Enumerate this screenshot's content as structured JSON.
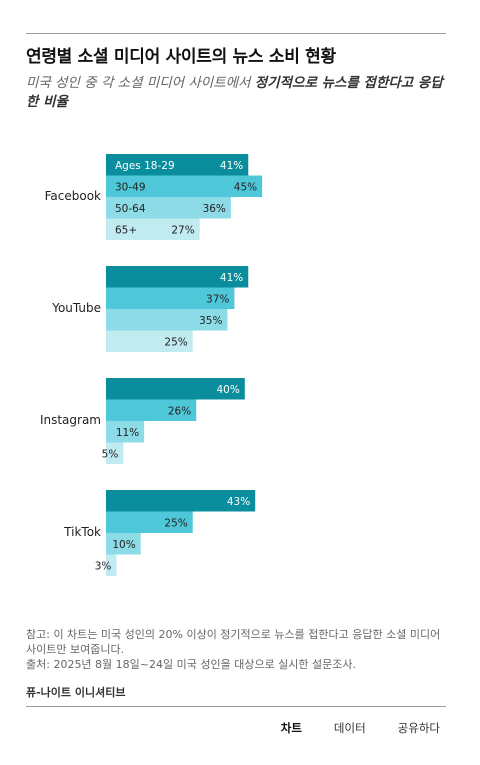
{
  "title": "연령별 소셜 미디어 사이트의 뉴스 소비 현황",
  "subtitle_before": "미국 성인 중 각 소셜 미디어 사이트에서 ",
  "subtitle_emphasis": "정기적으로 뉴스를 접한다고 응답한 비율",
  "colors": {
    "accent": "#0a8e9e",
    "series": [
      "#0a8e9e",
      "#4ec8d8",
      "#8ddbe6",
      "#c0ebf1"
    ]
  },
  "chart_data": {
    "type": "bar",
    "orientation": "horizontal",
    "title": "연령별 소셜 미디어 사이트의 뉴스 소비 현황",
    "categories": [
      "Facebook",
      "YouTube",
      "Instagram",
      "TikTok"
    ],
    "series": [
      {
        "name": "Ages 18-29",
        "values": [
          41,
          41,
          40,
          43
        ],
        "value_labels": [
          "41%",
          "41%",
          "40%",
          "43%"
        ]
      },
      {
        "name": "30-49",
        "values": [
          45,
          37,
          26,
          25
        ],
        "value_labels": [
          "45%",
          "37%",
          "26%",
          "25%"
        ]
      },
      {
        "name": "50-64",
        "values": [
          36,
          35,
          11,
          10
        ],
        "value_labels": [
          "36%",
          "35%",
          "11%",
          "10%"
        ]
      },
      {
        "name": "65+",
        "values": [
          27,
          25,
          5,
          3
        ],
        "value_labels": [
          "27%",
          "25%",
          "5%",
          "3%"
        ]
      }
    ],
    "xlim": [
      0,
      100
    ],
    "legend": "inline in first group",
    "grid": false
  },
  "notes": {
    "note": "참고: 이 차트는 미국 성인의 20% 이상이 정기적으로 뉴스를 접한다고 응답한 소셜 미디어 사이트만 보여줍니다.",
    "source_line": "출처: 2025년 8월 18일~24일 미국 성인을 대상으로 실시한 설문조사."
  },
  "org": "퓨-나이트 이니셔티브",
  "tabs": [
    {
      "label": "차트",
      "active": true
    },
    {
      "label": "데이터",
      "active": false
    },
    {
      "label": "공유하다",
      "active": false
    }
  ]
}
